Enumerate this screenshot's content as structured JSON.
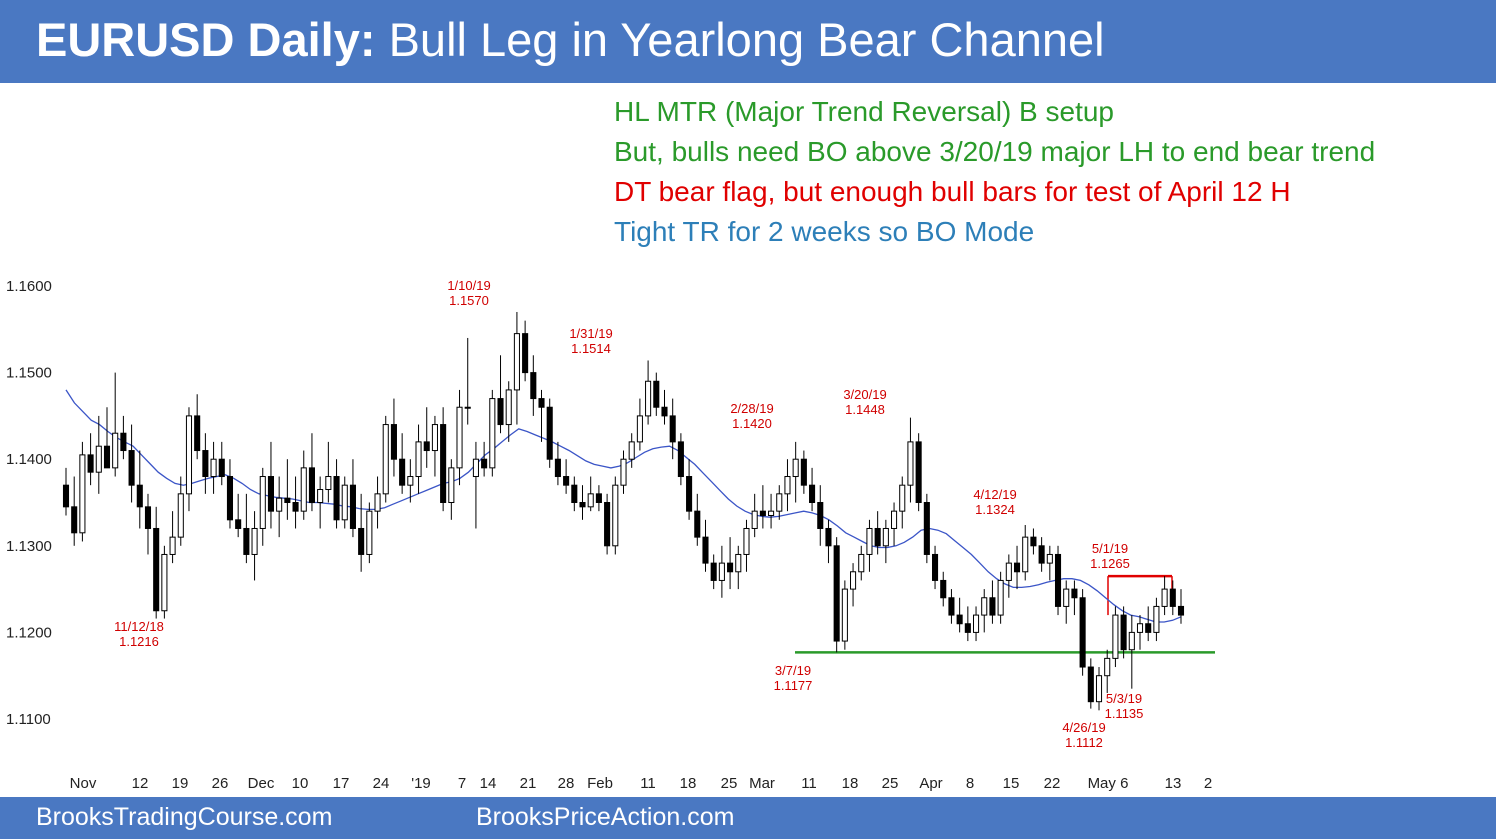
{
  "header": {
    "title_bold": "EURUSD Daily:",
    "title_rest": "Bull Leg in Yearlong Bear Channel"
  },
  "notes": [
    {
      "text": "HL MTR (Major Trend Reversal) B setup",
      "color": "#2a9a2a"
    },
    {
      "text": "But, bulls need BO above 3/20/19 major LH to end bear trend",
      "color": "#2a9a2a"
    },
    {
      "text": "DT bear flag, but enough bull bars for test of April 12 H",
      "color": "#e00000"
    },
    {
      "text": "Tight TR for 2 weeks so BO Mode",
      "color": "#2d7fb8"
    }
  ],
  "footer": {
    "left": "BrooksTradingCourse.com",
    "right": "BrooksPriceAction.com"
  },
  "colors": {
    "accent": "#4a78c2",
    "bull": "#ffffff",
    "bear": "#000000",
    "ema": "#3b55c7",
    "support": "#2a9a2a",
    "resistance": "#e00000",
    "annotation": "#d00000"
  },
  "chart_data": {
    "type": "candlestick",
    "symbol": "EURUSD",
    "timeframe": "Daily",
    "ylim": [
      1.1075,
      1.1625
    ],
    "yticks": [
      "1.1600",
      "1.1500",
      "1.1400",
      "1.1300",
      "1.1200",
      "1.1100"
    ],
    "xticks": [
      "Nov",
      "12",
      "19",
      "26",
      "Dec",
      "10",
      "17",
      "24",
      "'19",
      "7",
      "14",
      "21",
      "28",
      "Feb",
      "11",
      "18",
      "25",
      "Mar",
      "11",
      "18",
      "25",
      "Apr",
      "8",
      "15",
      "22",
      "May 6",
      "13",
      "2"
    ],
    "grid": false,
    "legend": "none",
    "series": [
      {
        "type": "ohlc",
        "candles": [
          [
            1.137,
            1.139,
            1.1335,
            1.1345
          ],
          [
            1.1345,
            1.138,
            1.13,
            1.1315
          ],
          [
            1.1315,
            1.142,
            1.1305,
            1.1405
          ],
          [
            1.1405,
            1.143,
            1.137,
            1.1385
          ],
          [
            1.1385,
            1.145,
            1.136,
            1.1415
          ],
          [
            1.1415,
            1.146,
            1.139,
            1.139
          ],
          [
            1.139,
            1.15,
            1.138,
            1.143
          ],
          [
            1.143,
            1.145,
            1.14,
            1.141
          ],
          [
            1.141,
            1.144,
            1.135,
            1.137
          ],
          [
            1.137,
            1.141,
            1.132,
            1.1345
          ],
          [
            1.1345,
            1.136,
            1.129,
            1.132
          ],
          [
            1.132,
            1.1345,
            1.1216,
            1.1225
          ],
          [
            1.1225,
            1.13,
            1.1216,
            1.129
          ],
          [
            1.129,
            1.134,
            1.128,
            1.131
          ],
          [
            1.131,
            1.138,
            1.13,
            1.136
          ],
          [
            1.136,
            1.146,
            1.134,
            1.145
          ],
          [
            1.145,
            1.1475,
            1.14,
            1.141
          ],
          [
            1.141,
            1.143,
            1.136,
            1.138
          ],
          [
            1.138,
            1.142,
            1.136,
            1.14
          ],
          [
            1.14,
            1.142,
            1.137,
            1.138
          ],
          [
            1.138,
            1.14,
            1.132,
            1.133
          ],
          [
            1.133,
            1.136,
            1.131,
            1.132
          ],
          [
            1.132,
            1.136,
            1.128,
            1.129
          ],
          [
            1.129,
            1.134,
            1.126,
            1.132
          ],
          [
            1.132,
            1.139,
            1.13,
            1.138
          ],
          [
            1.138,
            1.142,
            1.132,
            1.134
          ],
          [
            1.134,
            1.138,
            1.131,
            1.1355
          ],
          [
            1.1355,
            1.14,
            1.133,
            1.135
          ],
          [
            1.135,
            1.138,
            1.132,
            1.134
          ],
          [
            1.134,
            1.141,
            1.133,
            1.139
          ],
          [
            1.139,
            1.143,
            1.134,
            1.135
          ],
          [
            1.135,
            1.138,
            1.132,
            1.1365
          ],
          [
            1.1365,
            1.142,
            1.135,
            1.138
          ],
          [
            1.138,
            1.14,
            1.132,
            1.133
          ],
          [
            1.133,
            1.138,
            1.132,
            1.137
          ],
          [
            1.137,
            1.14,
            1.131,
            1.132
          ],
          [
            1.132,
            1.136,
            1.127,
            1.129
          ],
          [
            1.129,
            1.135,
            1.128,
            1.134
          ],
          [
            1.134,
            1.138,
            1.132,
            1.136
          ],
          [
            1.136,
            1.145,
            1.135,
            1.144
          ],
          [
            1.144,
            1.147,
            1.138,
            1.14
          ],
          [
            1.14,
            1.143,
            1.136,
            1.137
          ],
          [
            1.137,
            1.14,
            1.135,
            1.138
          ],
          [
            1.138,
            1.144,
            1.136,
            1.142
          ],
          [
            1.142,
            1.146,
            1.139,
            1.141
          ],
          [
            1.141,
            1.145,
            1.138,
            1.144
          ],
          [
            1.144,
            1.146,
            1.134,
            1.135
          ],
          [
            1.135,
            1.14,
            1.133,
            1.139
          ],
          [
            1.139,
            1.148,
            1.137,
            1.146
          ],
          [
            1.146,
            1.154,
            1.144,
            1.146
          ],
          [
            1.138,
            1.142,
            1.132,
            1.14
          ],
          [
            1.14,
            1.142,
            1.138,
            1.139
          ],
          [
            1.139,
            1.148,
            1.138,
            1.147
          ],
          [
            1.147,
            1.152,
            1.143,
            1.144
          ],
          [
            1.144,
            1.149,
            1.142,
            1.148
          ],
          [
            1.148,
            1.157,
            1.144,
            1.1545
          ],
          [
            1.1545,
            1.156,
            1.149,
            1.15
          ],
          [
            1.15,
            1.152,
            1.145,
            1.147
          ],
          [
            1.147,
            1.148,
            1.142,
            1.146
          ],
          [
            1.146,
            1.147,
            1.139,
            1.14
          ],
          [
            1.14,
            1.142,
            1.137,
            1.138
          ],
          [
            1.138,
            1.14,
            1.136,
            1.137
          ],
          [
            1.137,
            1.138,
            1.134,
            1.135
          ],
          [
            1.135,
            1.137,
            1.133,
            1.1345
          ],
          [
            1.1345,
            1.138,
            1.134,
            1.136
          ],
          [
            1.136,
            1.137,
            1.134,
            1.135
          ],
          [
            1.135,
            1.136,
            1.129,
            1.13
          ],
          [
            1.13,
            1.138,
            1.129,
            1.137
          ],
          [
            1.137,
            1.141,
            1.136,
            1.14
          ],
          [
            1.14,
            1.143,
            1.139,
            1.142
          ],
          [
            1.142,
            1.147,
            1.141,
            1.145
          ],
          [
            1.145,
            1.1514,
            1.144,
            1.149
          ],
          [
            1.149,
            1.15,
            1.145,
            1.146
          ],
          [
            1.146,
            1.148,
            1.144,
            1.145
          ],
          [
            1.145,
            1.147,
            1.14,
            1.142
          ],
          [
            1.142,
            1.143,
            1.137,
            1.138
          ],
          [
            1.138,
            1.14,
            1.133,
            1.134
          ],
          [
            1.134,
            1.136,
            1.13,
            1.131
          ],
          [
            1.131,
            1.133,
            1.127,
            1.128
          ],
          [
            1.128,
            1.129,
            1.125,
            1.126
          ],
          [
            1.126,
            1.13,
            1.124,
            1.128
          ],
          [
            1.128,
            1.131,
            1.125,
            1.127
          ],
          [
            1.127,
            1.13,
            1.125,
            1.129
          ],
          [
            1.129,
            1.133,
            1.127,
            1.132
          ],
          [
            1.132,
            1.136,
            1.131,
            1.134
          ],
          [
            1.134,
            1.137,
            1.132,
            1.1335
          ],
          [
            1.1335,
            1.136,
            1.132,
            1.134
          ],
          [
            1.134,
            1.137,
            1.133,
            1.136
          ],
          [
            1.136,
            1.14,
            1.134,
            1.138
          ],
          [
            1.138,
            1.142,
            1.135,
            1.14
          ],
          [
            1.14,
            1.141,
            1.136,
            1.137
          ],
          [
            1.137,
            1.139,
            1.134,
            1.135
          ],
          [
            1.135,
            1.137,
            1.13,
            1.132
          ],
          [
            1.132,
            1.133,
            1.128,
            1.13
          ],
          [
            1.13,
            1.131,
            1.1177,
            1.119
          ],
          [
            1.119,
            1.126,
            1.118,
            1.125
          ],
          [
            1.125,
            1.128,
            1.123,
            1.127
          ],
          [
            1.127,
            1.13,
            1.126,
            1.129
          ],
          [
            1.129,
            1.133,
            1.127,
            1.132
          ],
          [
            1.132,
            1.134,
            1.129,
            1.13
          ],
          [
            1.13,
            1.133,
            1.128,
            1.132
          ],
          [
            1.132,
            1.135,
            1.13,
            1.134
          ],
          [
            1.134,
            1.138,
            1.132,
            1.137
          ],
          [
            1.137,
            1.1448,
            1.135,
            1.142
          ],
          [
            1.142,
            1.143,
            1.134,
            1.135
          ],
          [
            1.135,
            1.136,
            1.128,
            1.129
          ],
          [
            1.129,
            1.13,
            1.125,
            1.126
          ],
          [
            1.126,
            1.127,
            1.123,
            1.124
          ],
          [
            1.124,
            1.125,
            1.121,
            1.122
          ],
          [
            1.122,
            1.124,
            1.12,
            1.121
          ],
          [
            1.121,
            1.123,
            1.119,
            1.12
          ],
          [
            1.12,
            1.123,
            1.119,
            1.122
          ],
          [
            1.122,
            1.125,
            1.12,
            1.124
          ],
          [
            1.124,
            1.126,
            1.121,
            1.122
          ],
          [
            1.122,
            1.127,
            1.121,
            1.126
          ],
          [
            1.126,
            1.129,
            1.124,
            1.128
          ],
          [
            1.128,
            1.13,
            1.125,
            1.127
          ],
          [
            1.127,
            1.1324,
            1.126,
            1.131
          ],
          [
            1.131,
            1.132,
            1.129,
            1.13
          ],
          [
            1.13,
            1.131,
            1.127,
            1.128
          ],
          [
            1.128,
            1.13,
            1.126,
            1.129
          ],
          [
            1.129,
            1.13,
            1.122,
            1.123
          ],
          [
            1.123,
            1.126,
            1.121,
            1.125
          ],
          [
            1.125,
            1.126,
            1.122,
            1.124
          ],
          [
            1.124,
            1.125,
            1.115,
            1.116
          ],
          [
            1.116,
            1.117,
            1.1112,
            1.112
          ],
          [
            1.112,
            1.116,
            1.111,
            1.115
          ],
          [
            1.115,
            1.118,
            1.113,
            1.117
          ],
          [
            1.117,
            1.123,
            1.116,
            1.122
          ],
          [
            1.122,
            1.123,
            1.117,
            1.118
          ],
          [
            1.118,
            1.122,
            1.1135,
            1.12
          ],
          [
            1.12,
            1.122,
            1.118,
            1.121
          ],
          [
            1.121,
            1.123,
            1.119,
            1.12
          ],
          [
            1.12,
            1.124,
            1.119,
            1.123
          ],
          [
            1.123,
            1.1265,
            1.122,
            1.125
          ],
          [
            1.125,
            1.126,
            1.122,
            1.123
          ],
          [
            1.123,
            1.125,
            1.121,
            1.122
          ]
        ]
      },
      {
        "type": "moving_average",
        "period": 20,
        "values": [
          1.148,
          1.1465,
          1.1455,
          1.1445,
          1.144,
          1.1432,
          1.1425,
          1.142,
          1.1415,
          1.1405,
          1.1395,
          1.1385,
          1.1378,
          1.1372,
          1.137,
          1.1372,
          1.1375,
          1.1378,
          1.138,
          1.1382,
          1.1378,
          1.1372,
          1.1365,
          1.136,
          1.1358,
          1.1356,
          1.1355,
          1.1354,
          1.1352,
          1.135,
          1.135,
          1.1349,
          1.1348,
          1.1346,
          1.1345,
          1.1343,
          1.1342,
          1.1342,
          1.1344,
          1.1348,
          1.1352,
          1.1356,
          1.136,
          1.1364,
          1.1368,
          1.1372,
          1.1374,
          1.1378,
          1.1385,
          1.1395,
          1.1405,
          1.1412,
          1.142,
          1.1428,
          1.1435,
          1.1432,
          1.1428,
          1.1424,
          1.142,
          1.1415,
          1.141,
          1.1404,
          1.1398,
          1.1394,
          1.1392,
          1.139,
          1.1392,
          1.1396,
          1.1402,
          1.1408,
          1.1412,
          1.1414,
          1.1415,
          1.141,
          1.1402,
          1.1394,
          1.1384,
          1.1374,
          1.1364,
          1.1354,
          1.1346,
          1.134,
          1.1336,
          1.1334,
          1.1333,
          1.1334,
          1.1336,
          1.1338,
          1.134,
          1.1338,
          1.1335,
          1.133,
          1.1323,
          1.1315,
          1.131,
          1.1305,
          1.13,
          1.1298,
          1.1298,
          1.13,
          1.1304,
          1.131,
          1.1318,
          1.132,
          1.1318,
          1.1314,
          1.1306,
          1.1298,
          1.129,
          1.128,
          1.127,
          1.1262,
          1.1256,
          1.1252,
          1.1252,
          1.1253,
          1.1255,
          1.1258,
          1.126,
          1.1262,
          1.1262,
          1.126,
          1.1255,
          1.1248,
          1.124,
          1.1232,
          1.1225,
          1.122,
          1.1218,
          1.1215,
          1.1212,
          1.1212,
          1.1214,
          1.1218
        ]
      },
      {
        "type": "hline",
        "label": "support",
        "value": 1.1177
      },
      {
        "type": "hline_segment",
        "label": "resistance",
        "value": 1.1265
      }
    ],
    "annotations": [
      {
        "date": "11/12/18",
        "price": "1.1216"
      },
      {
        "date": "1/10/19",
        "price": "1.1570"
      },
      {
        "date": "1/31/19",
        "price": "1.1514"
      },
      {
        "date": "2/28/19",
        "price": "1.1420"
      },
      {
        "date": "3/20/19",
        "price": "1.1448"
      },
      {
        "date": "3/7/19",
        "price": "1.1177"
      },
      {
        "date": "4/12/19",
        "price": "1.1324"
      },
      {
        "date": "5/1/19",
        "price": "1.1265"
      },
      {
        "date": "5/3/19",
        "price": "1.1135"
      },
      {
        "date": "4/26/19",
        "price": "1.1112"
      }
    ]
  }
}
